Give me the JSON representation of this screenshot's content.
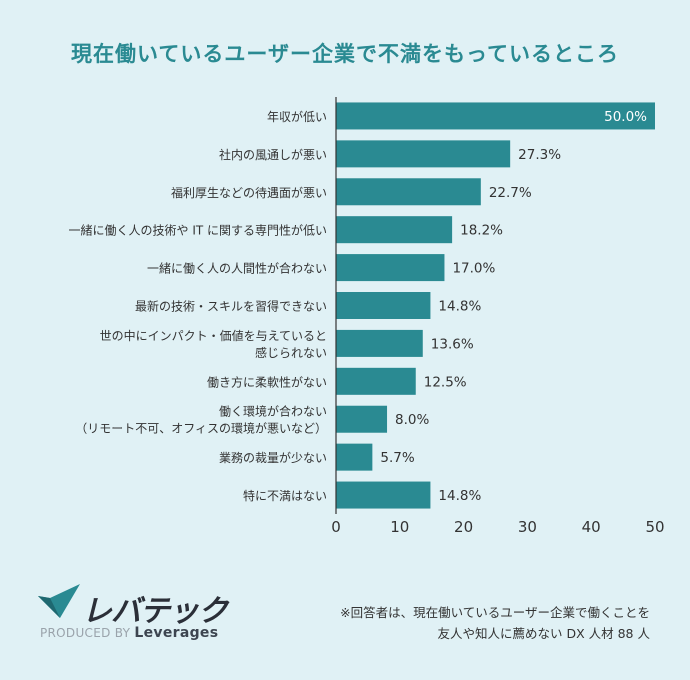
{
  "title": "現在働いているユーザー企業で不満をもっているところ",
  "chart_data": {
    "type": "bar",
    "orientation": "horizontal",
    "title": "現在働いているユーザー企業で不満をもっているところ",
    "categories": [
      [
        "年収が低い"
      ],
      [
        "社内の風通しが悪い"
      ],
      [
        "福利厚生などの待遇面が悪い"
      ],
      [
        "一緒に働く人の技術や IT に関する専門性が低い"
      ],
      [
        "一緒に働く人の人間性が合わない"
      ],
      [
        "最新の技術・スキルを習得できない"
      ],
      [
        "世の中にインパクト・価値を与えていると",
        "感じられない"
      ],
      [
        "働き方に柔軟性がない"
      ],
      [
        "働く環境が合わない",
        "（リモート不可、オフィスの環境が悪いなど）"
      ],
      [
        "業務の裁量が少ない"
      ],
      [
        "特に不満はない"
      ]
    ],
    "values": [
      50.0,
      27.3,
      22.7,
      18.2,
      17.0,
      14.8,
      13.6,
      12.5,
      8.0,
      5.7,
      14.8
    ],
    "value_labels": [
      "50.0%",
      "27.3%",
      "22.7%",
      "18.2%",
      "17.0%",
      "14.8%",
      "13.6%",
      "12.5%",
      "8.0%",
      "5.7%",
      "14.8%"
    ],
    "xlim": [
      0,
      50
    ],
    "xticks": [
      "0",
      "10",
      "20",
      "30",
      "40",
      "50"
    ],
    "xlabel": "",
    "ylabel": "",
    "bar_color": "#2a8a92"
  },
  "brand": {
    "name": "レバテック",
    "produced_prefix": "PRODUCED BY",
    "produced_name": "Leverages"
  },
  "note": {
    "line1": "※回答者は、現在働いているユーザー企業で働くことを",
    "line2": "友人や知人に薦めない DX 人材 88 人"
  }
}
